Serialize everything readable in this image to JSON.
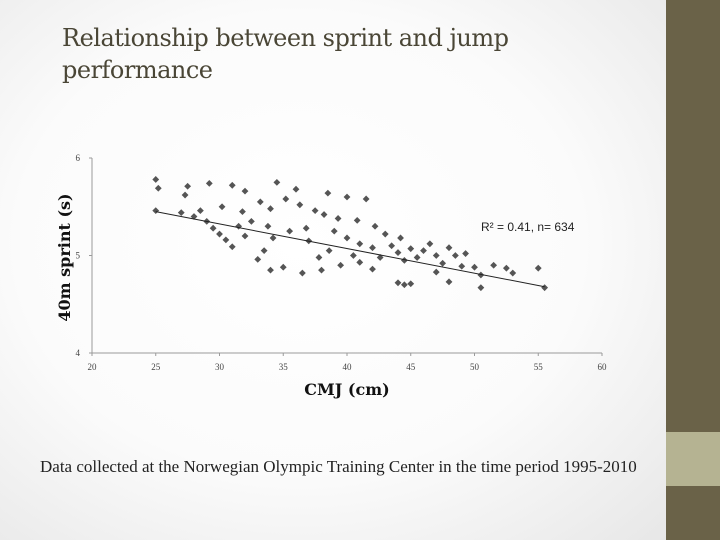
{
  "slide": {
    "title": "Relationship between sprint and jump performance",
    "footnote": "Data collected at the Norwegian Olympic Training Center in the time period 1995-2010"
  },
  "colors": {
    "sidebar": "#6a6248",
    "accent": "#b5b392",
    "points": "#555555",
    "trendline": "#222222"
  },
  "chart_data": {
    "type": "scatter",
    "xlabel": "CMJ (cm)",
    "ylabel": "40m sprint (s)",
    "xlim": [
      20,
      60
    ],
    "ylim": [
      4,
      6
    ],
    "xticks": [
      "20",
      "25",
      "30",
      "35",
      "40",
      "45",
      "50",
      "55",
      "60"
    ],
    "yticks": [
      "4",
      "5",
      "6"
    ],
    "annotation": "R² = 0.41, n= 634",
    "grid": false,
    "trendline": {
      "x": [
        25,
        55.5
      ],
      "y": [
        5.45,
        4.68
      ]
    },
    "points": [
      [
        25,
        5.78
      ],
      [
        25.2,
        5.69
      ],
      [
        25,
        5.46
      ],
      [
        27.5,
        5.71
      ],
      [
        27.3,
        5.62
      ],
      [
        29.2,
        5.74
      ],
      [
        31,
        5.72
      ],
      [
        32,
        5.66
      ],
      [
        34.5,
        5.75
      ],
      [
        36,
        5.68
      ],
      [
        38.5,
        5.64
      ],
      [
        40,
        5.6
      ],
      [
        41.5,
        5.58
      ],
      [
        27,
        5.44
      ],
      [
        28,
        5.4
      ],
      [
        28.5,
        5.46
      ],
      [
        29,
        5.35
      ],
      [
        29.5,
        5.28
      ],
      [
        30,
        5.22
      ],
      [
        30.5,
        5.16
      ],
      [
        31,
        5.09
      ],
      [
        31.5,
        5.3
      ],
      [
        32,
        5.2
      ],
      [
        33.5,
        5.05
      ],
      [
        32.5,
        5.35
      ],
      [
        30.2,
        5.5
      ],
      [
        31.8,
        5.45
      ],
      [
        43.5,
        5.1
      ],
      [
        44,
        5.03
      ],
      [
        44.5,
        4.95
      ],
      [
        45,
        5.07
      ],
      [
        45.5,
        4.98
      ],
      [
        46,
        5.05
      ],
      [
        46.5,
        5.12
      ],
      [
        47,
        5.0
      ],
      [
        47.5,
        4.92
      ],
      [
        48,
        5.08
      ],
      [
        48.5,
        5.0
      ],
      [
        49,
        4.89
      ],
      [
        49.3,
        5.02
      ],
      [
        50,
        4.88
      ],
      [
        50.5,
        4.8
      ],
      [
        44,
        4.72
      ],
      [
        44.5,
        4.7
      ],
      [
        45,
        4.71
      ],
      [
        47,
        4.83
      ],
      [
        48,
        4.73
      ],
      [
        50.5,
        4.67
      ],
      [
        51.5,
        4.9
      ],
      [
        52.5,
        4.87
      ],
      [
        53,
        4.82
      ],
      [
        55,
        4.87
      ],
      [
        55.5,
        4.67
      ],
      [
        33,
        4.96
      ],
      [
        34,
        4.85
      ],
      [
        35,
        4.88
      ],
      [
        36.5,
        4.82
      ],
      [
        38,
        4.85
      ],
      [
        39.5,
        4.9
      ],
      [
        41,
        4.93
      ],
      [
        42,
        4.86
      ],
      [
        33.2,
        5.55
      ],
      [
        34,
        5.48
      ],
      [
        35.2,
        5.58
      ],
      [
        36.3,
        5.52
      ],
      [
        37.5,
        5.46
      ],
      [
        38.2,
        5.42
      ],
      [
        39.3,
        5.38
      ],
      [
        40.8,
        5.36
      ],
      [
        42.2,
        5.3
      ],
      [
        43,
        5.22
      ],
      [
        44.2,
        5.18
      ],
      [
        37,
        5.15
      ],
      [
        38.6,
        5.05
      ],
      [
        39,
        5.25
      ],
      [
        40,
        5.18
      ],
      [
        41,
        5.12
      ],
      [
        42,
        5.08
      ],
      [
        35.5,
        5.25
      ],
      [
        36.8,
        5.28
      ],
      [
        34.2,
        5.18
      ],
      [
        33.8,
        5.3
      ],
      [
        37.8,
        4.98
      ],
      [
        40.5,
        5.0
      ],
      [
        42.6,
        4.98
      ]
    ]
  }
}
